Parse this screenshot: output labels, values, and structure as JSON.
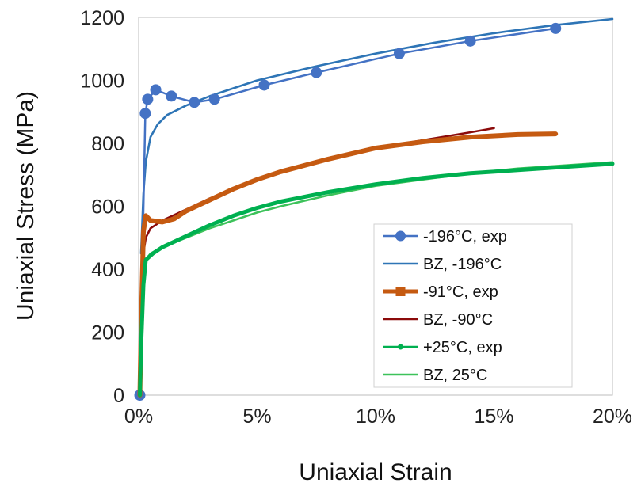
{
  "chart_data": {
    "type": "line",
    "title": "",
    "xlabel": "Uniaxial Strain",
    "ylabel": "Uniaxial Stress (MPa)",
    "xlim": [
      0,
      20
    ],
    "ylim": [
      0,
      1200
    ],
    "x_unit": "%",
    "x_ticks": [
      "0%",
      "5%",
      "10%",
      "15%",
      "20%"
    ],
    "y_ticks": [
      "0",
      "200",
      "400",
      "600",
      "800",
      "1000",
      "1200"
    ],
    "grid": false,
    "legend_position": "bottom-right",
    "series": [
      {
        "name": "-196°C, exp",
        "color": "#4472c4",
        "style": "line-markers",
        "marker": "circle",
        "x": [
          0.05,
          0.28,
          0.38,
          0.72,
          1.38,
          2.35,
          3.2,
          5.3,
          7.5,
          11.0,
          14.0,
          17.6
        ],
        "y": [
          0,
          895,
          940,
          970,
          950,
          930,
          940,
          985,
          1025,
          1085,
          1125,
          1165
        ]
      },
      {
        "name": "BZ, -196°C",
        "color": "#2e75b6",
        "style": "line",
        "x": [
          0.1,
          0.2,
          0.3,
          0.5,
          0.8,
          1.2,
          2.0,
          3.0,
          5.0,
          7.5,
          10.0,
          12.5,
          15.0,
          17.5,
          20.0
        ],
        "y": [
          450,
          640,
          740,
          820,
          860,
          890,
          920,
          950,
          1000,
          1045,
          1085,
          1120,
          1150,
          1175,
          1195
        ]
      },
      {
        "name": "-91°C, exp",
        "color": "#c55a11",
        "style": "line-markers",
        "marker": "square",
        "x": [
          0.05,
          0.1,
          0.2,
          0.3,
          0.5,
          1.0,
          1.5,
          2.0,
          3.0,
          4.0,
          5.0,
          6.0,
          8.0,
          10.0,
          12.0,
          14.0,
          16.0,
          17.6
        ],
        "y": [
          0,
          200,
          520,
          570,
          555,
          550,
          560,
          585,
          620,
          655,
          685,
          710,
          750,
          785,
          805,
          820,
          828,
          830
        ]
      },
      {
        "name": "BZ, -90°C",
        "color": "#8b0a0a",
        "style": "line",
        "x": [
          0.1,
          0.2,
          0.3,
          0.5,
          0.8,
          1.0,
          2.0,
          3.0,
          4.0,
          5.0,
          6.0,
          8.0,
          10.0,
          12.0,
          14.0,
          15.0
        ],
        "y": [
          300,
          450,
          500,
          530,
          545,
          555,
          590,
          625,
          655,
          685,
          710,
          750,
          785,
          810,
          835,
          848
        ]
      },
      {
        "name": "+25°C, exp",
        "color": "#00b050",
        "style": "line-markers",
        "marker": "dot",
        "x": [
          0.05,
          0.1,
          0.2,
          0.3,
          0.6,
          1.0,
          2.0,
          3.0,
          4.0,
          5.0,
          6.0,
          8.0,
          10.0,
          12.0,
          14.0,
          16.0,
          18.0,
          20.0
        ],
        "y": [
          0,
          150,
          350,
          430,
          450,
          470,
          505,
          540,
          570,
          595,
          615,
          645,
          670,
          690,
          705,
          715,
          725,
          735
        ]
      },
      {
        "name": "BZ, 25°C",
        "color": "#3dc25a",
        "style": "line",
        "x": [
          0.1,
          0.2,
          0.3,
          0.5,
          1.0,
          2.0,
          3.0,
          4.0,
          5.0,
          6.0,
          8.0,
          10.0,
          12.0,
          14.0,
          16.0,
          18.0,
          20.0
        ],
        "y": [
          300,
          390,
          430,
          450,
          470,
          500,
          530,
          555,
          580,
          600,
          635,
          665,
          685,
          705,
          720,
          730,
          740
        ]
      }
    ]
  }
}
